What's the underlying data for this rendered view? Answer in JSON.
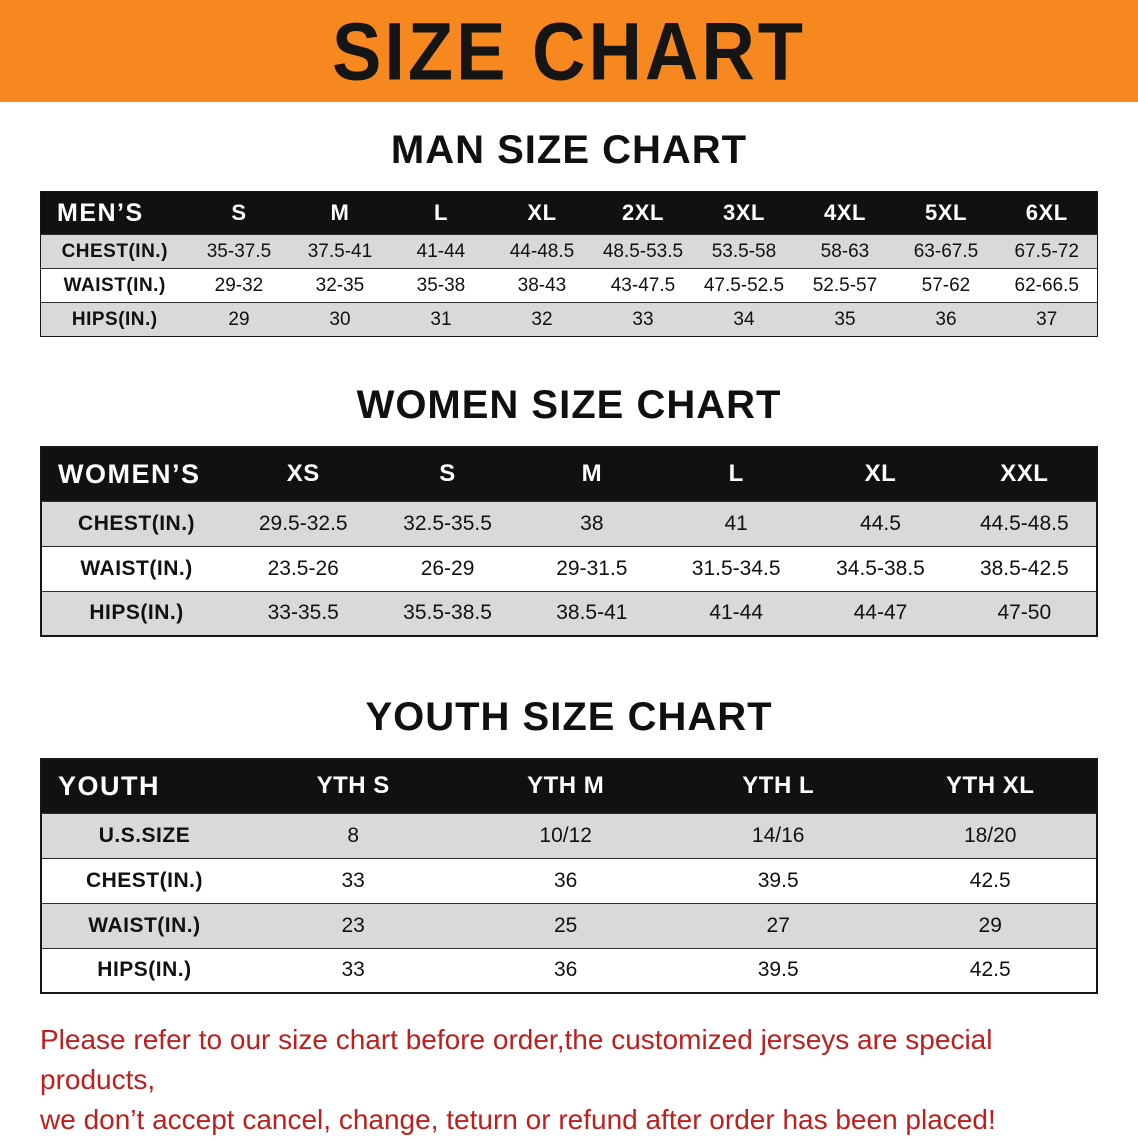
{
  "banner": {
    "title": "SIZE CHART",
    "bg_color": "#F6881F",
    "text_color": "#151515"
  },
  "sections": [
    {
      "heading": "MAN SIZE CHART",
      "table": {
        "name": "mens-size-table",
        "header": [
          "MEN’S",
          "S",
          "M",
          "L",
          "XL",
          "2XL",
          "3XL",
          "4XL",
          "5XL",
          "6XL"
        ],
        "rows": [
          [
            "CHEST(IN.)",
            "35-37.5",
            "37.5-41",
            "41-44",
            "44-48.5",
            "48.5-53.5",
            "53.5-58",
            "58-63",
            "63-67.5",
            "67.5-72"
          ],
          [
            "WAIST(IN.)",
            "29-32",
            "32-35",
            "35-38",
            "38-43",
            "43-47.5",
            "47.5-52.5",
            "52.5-57",
            "57-62",
            "62-66.5"
          ],
          [
            "HIPS(IN.)",
            "29",
            "30",
            "31",
            "32",
            "33",
            "34",
            "35",
            "36",
            "37"
          ]
        ]
      }
    },
    {
      "heading": "WOMEN SIZE CHART",
      "table": {
        "name": "womens-size-table",
        "header": [
          "WOMEN’S",
          "XS",
          "S",
          "M",
          "L",
          "XL",
          "XXL"
        ],
        "rows": [
          [
            "CHEST(IN.)",
            "29.5-32.5",
            "32.5-35.5",
            "38",
            "41",
            "44.5",
            "44.5-48.5"
          ],
          [
            "WAIST(IN.)",
            "23.5-26",
            "26-29",
            "29-31.5",
            "31.5-34.5",
            "34.5-38.5",
            "38.5-42.5"
          ],
          [
            "HIPS(IN.)",
            "33-35.5",
            "35.5-38.5",
            "38.5-41",
            "41-44",
            "44-47",
            "47-50"
          ]
        ]
      }
    },
    {
      "heading": "YOUTH SIZE CHART",
      "table": {
        "name": "youth-size-table",
        "header": [
          "YOUTH",
          "YTH S",
          "YTH M",
          "YTH L",
          "YTH XL"
        ],
        "rows": [
          [
            "U.S.SIZE",
            "8",
            "10/12",
            "14/16",
            "18/20"
          ],
          [
            "CHEST(IN.)",
            "33",
            "36",
            "39.5",
            "42.5"
          ],
          [
            "WAIST(IN.)",
            "23",
            "25",
            "27",
            "29"
          ],
          [
            "HIPS(IN.)",
            "33",
            "36",
            "39.5",
            "42.5"
          ]
        ]
      }
    }
  ],
  "disclaimer": {
    "line1": "Please refer to our size chart before order,the customized jerseys are special products,",
    "line2": "we don’t accept cancel, change, teturn or refund after order has been placed!",
    "text_color": "#c11d1d"
  }
}
